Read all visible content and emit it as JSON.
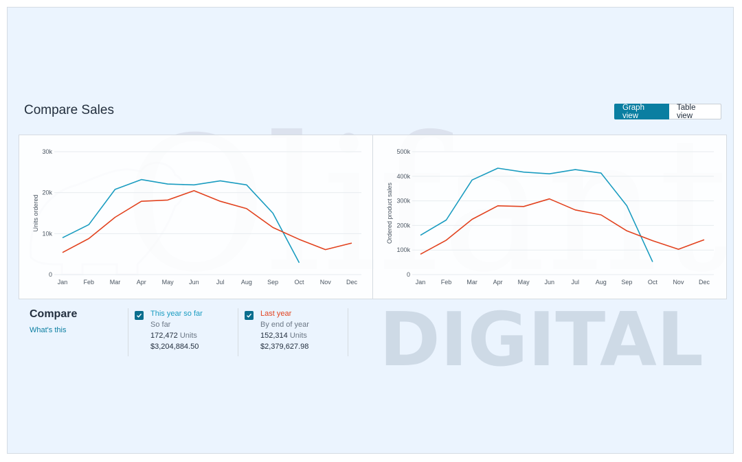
{
  "page": {
    "title": "Compare Sales",
    "view_toggle": {
      "graph": "Graph view",
      "table": "Table view",
      "active": "graph"
    }
  },
  "watermark": {
    "line1": "Olifant",
    "line2": "DIGITAL"
  },
  "compare": {
    "heading": "Compare",
    "link": "What's this",
    "series": [
      {
        "name": "This year so far",
        "sub": "So far",
        "units_value": "172,472",
        "units_label": "Units",
        "sales": "$3,204,884.50",
        "color": "#1a9cc0",
        "checked": true
      },
      {
        "name": "Last year",
        "sub": "By end of year",
        "units_value": "152,314",
        "units_label": "Units",
        "sales": "$2,379,627.98",
        "color": "#e2421e",
        "checked": true
      }
    ]
  },
  "chart_data": [
    {
      "type": "line",
      "ylabel": "Units ordered",
      "categories": [
        "Jan",
        "Feb",
        "Mar",
        "Apr",
        "May",
        "Jun",
        "Jul",
        "Aug",
        "Sep",
        "Oct",
        "Nov",
        "Dec"
      ],
      "ylim": [
        0,
        30000
      ],
      "yticks": [
        0,
        10000,
        20000,
        30000
      ],
      "ytick_labels": [
        "0",
        "10k",
        "20k",
        "30k"
      ],
      "series": [
        {
          "name": "This year so far",
          "color": "#1a9cc0",
          "values": [
            9000,
            12200,
            20800,
            23200,
            22100,
            21900,
            22900,
            21900,
            15000,
            2900,
            null,
            null
          ]
        },
        {
          "name": "Last year",
          "color": "#e2421e",
          "values": [
            5400,
            8800,
            14000,
            17900,
            18200,
            20500,
            17900,
            16100,
            11500,
            8600,
            6100,
            7700
          ]
        }
      ]
    },
    {
      "type": "line",
      "ylabel": "Ordered product sales",
      "categories": [
        "Jan",
        "Feb",
        "Mar",
        "Apr",
        "May",
        "Jun",
        "Jul",
        "Aug",
        "Sep",
        "Oct",
        "Nov",
        "Dec"
      ],
      "ylim": [
        0,
        500000
      ],
      "yticks": [
        0,
        100000,
        200000,
        300000,
        400000,
        500000
      ],
      "ytick_labels": [
        "0",
        "100k",
        "200k",
        "300k",
        "400k",
        "500k"
      ],
      "series": [
        {
          "name": "This year so far",
          "color": "#1a9cc0",
          "values": [
            160000,
            222000,
            385000,
            433000,
            417000,
            410000,
            427000,
            413000,
            280000,
            52000,
            null,
            null
          ]
        },
        {
          "name": "Last year",
          "color": "#e2421e",
          "values": [
            83000,
            140000,
            225000,
            280000,
            277000,
            308000,
            263000,
            243000,
            178000,
            138000,
            103000,
            142000
          ]
        }
      ]
    }
  ]
}
